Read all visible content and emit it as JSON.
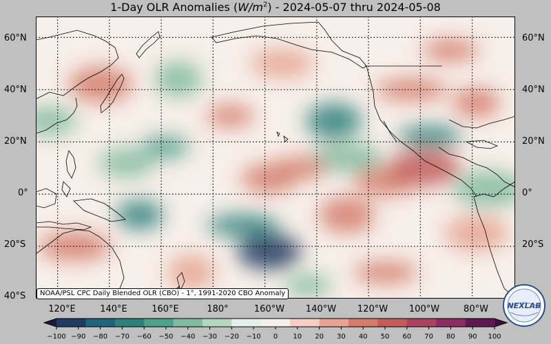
{
  "title": {
    "prefix": "1-Day OLR Anomalies (",
    "unit_letter": "W/m",
    "unit_exp": "2",
    "suffix": ") - 2024-05-07 thru 2024-05-08"
  },
  "map": {
    "lat_labels": [
      "60°N",
      "40°N",
      "20°N",
      "0°",
      "20°S",
      "40°S"
    ],
    "lat_values": [
      60,
      40,
      20,
      0,
      -20,
      -40
    ],
    "lon_labels": [
      "120°E",
      "140°E",
      "160°E",
      "180°",
      "160°W",
      "140°W",
      "120°W",
      "100°W",
      "80°W"
    ],
    "lon_values": [
      120,
      140,
      160,
      180,
      200,
      220,
      240,
      260,
      280
    ],
    "lat_range": [
      -40,
      68
    ],
    "lon_range": [
      110,
      295
    ],
    "projection": "equirectangular",
    "gridlines": "dotted",
    "ocean_color": "#f7efe9",
    "land_outline_color": "#000000"
  },
  "source_note": "NOAA/PSL CPC Daily Blended OLR (CBO) - 1°, 1991-2020 CBO Anomaly",
  "colorbar": {
    "tick_labels": [
      "−100",
      "−90",
      "−80",
      "−70",
      "−60",
      "−50",
      "−40",
      "−30",
      "−20",
      "−10",
      "0",
      "10",
      "20",
      "30",
      "40",
      "50",
      "60",
      "70",
      "80",
      "90",
      "100"
    ],
    "tick_values": [
      -100,
      -90,
      -80,
      -70,
      -60,
      -50,
      -40,
      -30,
      -20,
      -10,
      0,
      10,
      20,
      30,
      40,
      50,
      60,
      70,
      80,
      90,
      100
    ],
    "range": [
      -100,
      100
    ],
    "extend": "both",
    "colors": [
      "#1a1b3c",
      "#1f3b5e",
      "#21617a",
      "#2e807c",
      "#4d9e8a",
      "#82bba0",
      "#b7d6c1",
      "#e6f0ea",
      "#f7efe9",
      "#f2cfc2",
      "#e6a593",
      "#d47c6b",
      "#c15c5a",
      "#a9435e",
      "#8a2d63",
      "#5e1a52",
      "#3a0f3a"
    ]
  },
  "logo": {
    "text": "NEXLAB"
  },
  "anomaly_regions": [
    {
      "lon": 160,
      "lat": 18,
      "value": -45
    },
    {
      "lon": 145,
      "lat": 12,
      "value": -40
    },
    {
      "lon": 200,
      "lat": -22,
      "value": -85
    },
    {
      "lon": 190,
      "lat": -12,
      "value": -60
    },
    {
      "lon": 150,
      "lat": -8,
      "value": -55
    },
    {
      "lon": 225,
      "lat": 28,
      "value": -55
    },
    {
      "lon": 262,
      "lat": 22,
      "value": -60
    },
    {
      "lon": 230,
      "lat": 14,
      "value": -35
    },
    {
      "lon": 165,
      "lat": 44,
      "value": -40
    },
    {
      "lon": 212,
      "lat": 10,
      "value": 35
    },
    {
      "lon": 245,
      "lat": 5,
      "value": 30
    },
    {
      "lon": 260,
      "lat": 10,
      "value": 45
    },
    {
      "lon": 185,
      "lat": 30,
      "value": 35
    },
    {
      "lon": 200,
      "lat": 6,
      "value": 30
    },
    {
      "lon": 135,
      "lat": 42,
      "value": 35
    },
    {
      "lon": 255,
      "lat": 40,
      "value": 35
    },
    {
      "lon": 280,
      "lat": 35,
      "value": 30
    },
    {
      "lon": 230,
      "lat": -8,
      "value": 30
    },
    {
      "lon": 245,
      "lat": -30,
      "value": 35
    },
    {
      "lon": 125,
      "lat": -20,
      "value": 30
    },
    {
      "lon": 170,
      "lat": -30,
      "value": 25
    },
    {
      "lon": 270,
      "lat": 55,
      "value": 35
    },
    {
      "lon": 205,
      "lat": 50,
      "value": 25
    },
    {
      "lon": 285,
      "lat": 2,
      "value": -30
    },
    {
      "lon": 215,
      "lat": -35,
      "value": -30
    },
    {
      "lon": 115,
      "lat": 28,
      "value": -35
    },
    {
      "lon": 280,
      "lat": -15,
      "value": 25
    }
  ]
}
